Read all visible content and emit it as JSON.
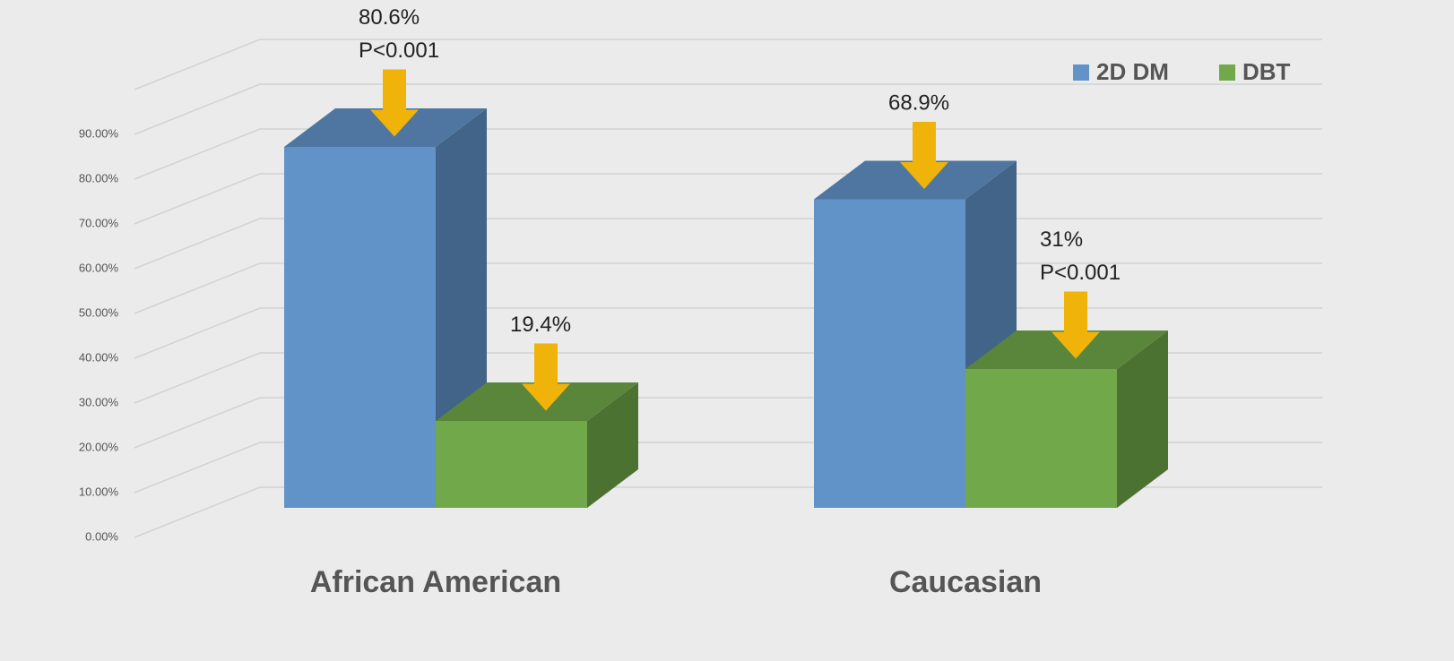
{
  "chart_data": {
    "type": "bar3d",
    "categories": [
      "African American",
      "Caucasian"
    ],
    "series": [
      {
        "name": "2D DM",
        "color": "#6193c9",
        "values": [
          80.6,
          68.9
        ],
        "value_labels": [
          "80.6%",
          "68.9%"
        ],
        "p_values": [
          "P<0.001",
          null
        ]
      },
      {
        "name": "DBT",
        "color": "#70a84a",
        "values": [
          19.4,
          31
        ],
        "value_labels": [
          "19.4%",
          "31%"
        ],
        "p_values": [
          null,
          "P<0.001"
        ]
      }
    ],
    "ylim": [
      0,
      100
    ],
    "yticks": [
      {
        "value": 0,
        "label": "0.00%"
      },
      {
        "value": 10,
        "label": "10.00%"
      },
      {
        "value": 20,
        "label": "20.00%"
      },
      {
        "value": 30,
        "label": "30.00%"
      },
      {
        "value": 40,
        "label": "40.00%"
      },
      {
        "value": 50,
        "label": "50.00%"
      },
      {
        "value": 60,
        "label": "60.00%"
      },
      {
        "value": 70,
        "label": "70.00%"
      },
      {
        "value": 80,
        "label": "80.00%"
      },
      {
        "value": 90,
        "label": "90.00%"
      }
    ],
    "grid": true,
    "legend": "top-right"
  }
}
